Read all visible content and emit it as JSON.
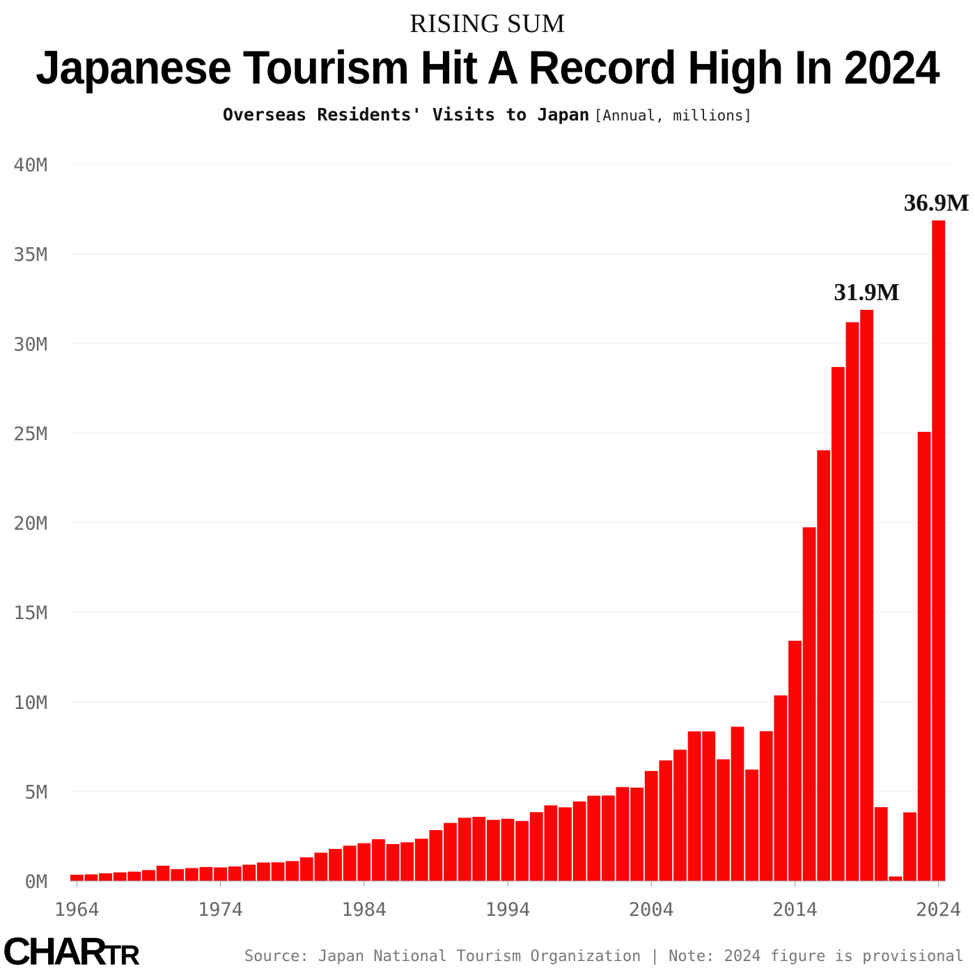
{
  "header": {
    "kicker": "RISING SUM",
    "title": "Japanese Tourism Hit A Record High In 2024",
    "subtitle": "Overseas Residents' Visits to Japan",
    "unit_note": "[Annual, millions]"
  },
  "footer": {
    "logo_main": "CHAR",
    "logo_small": "TR",
    "source": "Source: Japan National Tourism Organization | Note: 2024 figure is provisional"
  },
  "colors": {
    "bar": "#fb0606",
    "grid": "#eeeeee",
    "axis": "#999999"
  },
  "chart_data": {
    "type": "bar",
    "title": "Japanese Tourism Hit A Record High In 2024",
    "subtitle": "Overseas Residents' Visits to Japan",
    "ylim": [
      0,
      40
    ],
    "yticks": [
      0,
      5,
      10,
      15,
      20,
      25,
      30,
      35,
      40
    ],
    "ytick_labels": [
      "0M",
      "5M",
      "10M",
      "15M",
      "20M",
      "25M",
      "30M",
      "35M",
      "40M"
    ],
    "xtick_labels": [
      "1964",
      "1974",
      "1984",
      "1994",
      "2004",
      "2014",
      "2024"
    ],
    "grid": true,
    "categories": [
      1964,
      1965,
      1966,
      1967,
      1968,
      1969,
      1970,
      1971,
      1972,
      1973,
      1974,
      1975,
      1976,
      1977,
      1978,
      1979,
      1980,
      1981,
      1982,
      1983,
      1984,
      1985,
      1986,
      1987,
      1988,
      1989,
      1990,
      1991,
      1992,
      1993,
      1994,
      1995,
      1996,
      1997,
      1998,
      1999,
      2000,
      2001,
      2002,
      2003,
      2004,
      2005,
      2006,
      2007,
      2008,
      2009,
      2010,
      2011,
      2012,
      2013,
      2014,
      2015,
      2016,
      2017,
      2018,
      2019,
      2020,
      2021,
      2022,
      2023,
      2024
    ],
    "values": [
      0.35,
      0.37,
      0.43,
      0.48,
      0.52,
      0.61,
      0.85,
      0.66,
      0.72,
      0.78,
      0.76,
      0.81,
      0.91,
      1.03,
      1.04,
      1.11,
      1.32,
      1.58,
      1.79,
      1.97,
      2.11,
      2.33,
      2.06,
      2.16,
      2.36,
      2.84,
      3.24,
      3.53,
      3.58,
      3.41,
      3.47,
      3.35,
      3.84,
      4.22,
      4.11,
      4.44,
      4.76,
      4.77,
      5.24,
      5.21,
      6.14,
      6.73,
      7.33,
      8.35,
      8.35,
      6.79,
      8.61,
      6.22,
      8.36,
      10.36,
      13.41,
      19.74,
      24.04,
      28.69,
      31.19,
      31.88,
      4.12,
      0.25,
      3.83,
      25.07,
      36.87
    ],
    "data_labels": [
      {
        "year": 2019,
        "text": "31.9M"
      },
      {
        "year": 2024,
        "text": "36.9M"
      }
    ]
  }
}
